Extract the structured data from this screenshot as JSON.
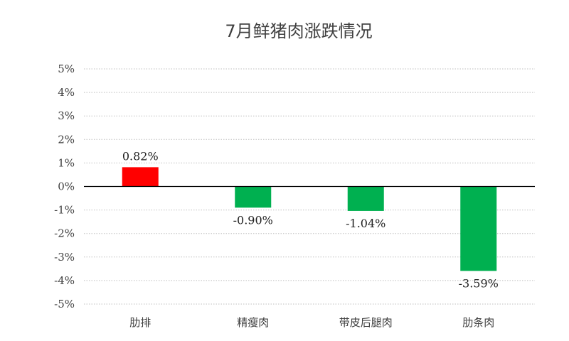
{
  "chart_data": {
    "type": "bar",
    "title": "7月鲜猪肉涨跌情况",
    "categories": [
      "肋排",
      "精瘦肉",
      "带皮后腿肉",
      "肋条肉"
    ],
    "values": [
      0.82,
      -0.9,
      -1.04,
      -3.59
    ],
    "data_labels": [
      "0.82%",
      "-0.90%",
      "-1.04%",
      "-3.59%"
    ],
    "ylim": [
      -5,
      5
    ],
    "yticks": [
      5,
      4,
      3,
      2,
      1,
      0,
      -1,
      -2,
      -3,
      -4,
      -5
    ],
    "ytick_labels": [
      "5%",
      "4%",
      "3%",
      "2%",
      "1%",
      "0%",
      "-1%",
      "-2%",
      "-3%",
      "-4%",
      "-5%"
    ],
    "grid": true,
    "colors": {
      "positive": "#ff0000",
      "negative": "#00b050"
    }
  }
}
